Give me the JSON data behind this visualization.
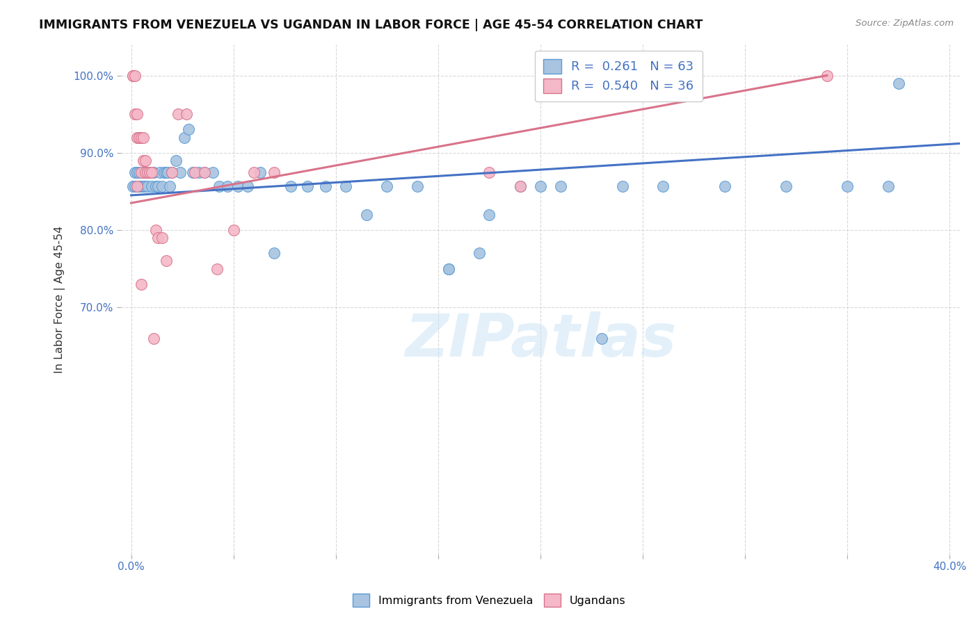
{
  "title": "IMMIGRANTS FROM VENEZUELA VS UGANDAN IN LABOR FORCE | AGE 45-54 CORRELATION CHART",
  "source": "Source: ZipAtlas.com",
  "ylabel": "In Labor Force | Age 45-54",
  "xlim": [
    -0.005,
    0.405
  ],
  "ylim": [
    0.38,
    1.04
  ],
  "xticks": [
    0.0,
    0.05,
    0.1,
    0.15,
    0.2,
    0.25,
    0.3,
    0.35,
    0.4
  ],
  "xticklabels": [
    "0.0%",
    "",
    "",
    "",
    "",
    "",
    "",
    "",
    "40.0%"
  ],
  "yticks": [
    0.7,
    0.8,
    0.9,
    1.0
  ],
  "yticklabels": [
    "70.0%",
    "80.0%",
    "90.0%",
    "100.0%"
  ],
  "blue_color": "#a8c4e0",
  "pink_color": "#f4b8c8",
  "blue_edge_color": "#5b9bd5",
  "pink_edge_color": "#d9728a",
  "blue_line_color": "#4472c4",
  "pink_line_color": "#d9728a",
  "watermark": "ZIPatlas",
  "blue_scatter_x": [
    0.001,
    0.002,
    0.002,
    0.003,
    0.003,
    0.004,
    0.004,
    0.005,
    0.005,
    0.006,
    0.006,
    0.007,
    0.007,
    0.008,
    0.008,
    0.009,
    0.01,
    0.011,
    0.012,
    0.013,
    0.014,
    0.015,
    0.016,
    0.017,
    0.018,
    0.019,
    0.02,
    0.022,
    0.024,
    0.026,
    0.028,
    0.03,
    0.033,
    0.036,
    0.04,
    0.043,
    0.047,
    0.052,
    0.057,
    0.063,
    0.07,
    0.078,
    0.086,
    0.095,
    0.105,
    0.115,
    0.125,
    0.14,
    0.155,
    0.17,
    0.19,
    0.21,
    0.23,
    0.26,
    0.29,
    0.32,
    0.35,
    0.37,
    0.155,
    0.175,
    0.2,
    0.24,
    0.375
  ],
  "blue_scatter_y": [
    0.857,
    0.857,
    0.875,
    0.857,
    0.875,
    0.857,
    0.875,
    0.857,
    0.857,
    0.857,
    0.875,
    0.857,
    0.875,
    0.875,
    0.857,
    0.875,
    0.857,
    0.875,
    0.857,
    0.857,
    0.875,
    0.857,
    0.875,
    0.875,
    0.875,
    0.857,
    0.875,
    0.89,
    0.875,
    0.92,
    0.93,
    0.875,
    0.875,
    0.875,
    0.875,
    0.857,
    0.857,
    0.857,
    0.857,
    0.875,
    0.77,
    0.857,
    0.857,
    0.857,
    0.857,
    0.82,
    0.857,
    0.857,
    0.75,
    0.77,
    0.857,
    0.857,
    0.66,
    0.857,
    0.857,
    0.857,
    0.857,
    0.857,
    0.75,
    0.82,
    0.857,
    0.857,
    0.99
  ],
  "pink_scatter_x": [
    0.001,
    0.001,
    0.002,
    0.002,
    0.003,
    0.003,
    0.004,
    0.004,
    0.005,
    0.005,
    0.006,
    0.006,
    0.007,
    0.007,
    0.008,
    0.009,
    0.01,
    0.011,
    0.012,
    0.013,
    0.015,
    0.017,
    0.02,
    0.023,
    0.027,
    0.031,
    0.036,
    0.042,
    0.05,
    0.06,
    0.07,
    0.175,
    0.19,
    0.34,
    0.003,
    0.005
  ],
  "pink_scatter_y": [
    1.0,
    1.0,
    1.0,
    0.95,
    0.92,
    0.95,
    0.92,
    0.92,
    0.92,
    0.875,
    0.92,
    0.89,
    0.875,
    0.89,
    0.875,
    0.875,
    0.875,
    0.66,
    0.8,
    0.79,
    0.79,
    0.76,
    0.875,
    0.95,
    0.95,
    0.875,
    0.875,
    0.75,
    0.8,
    0.875,
    0.875,
    0.875,
    0.857,
    1.0,
    0.857,
    0.73
  ],
  "blue_trend_x": [
    0.0,
    0.405
  ],
  "blue_trend_y": [
    0.845,
    0.912
  ],
  "pink_trend_x": [
    0.0,
    0.34
  ],
  "pink_trend_y": [
    0.835,
    1.0
  ]
}
